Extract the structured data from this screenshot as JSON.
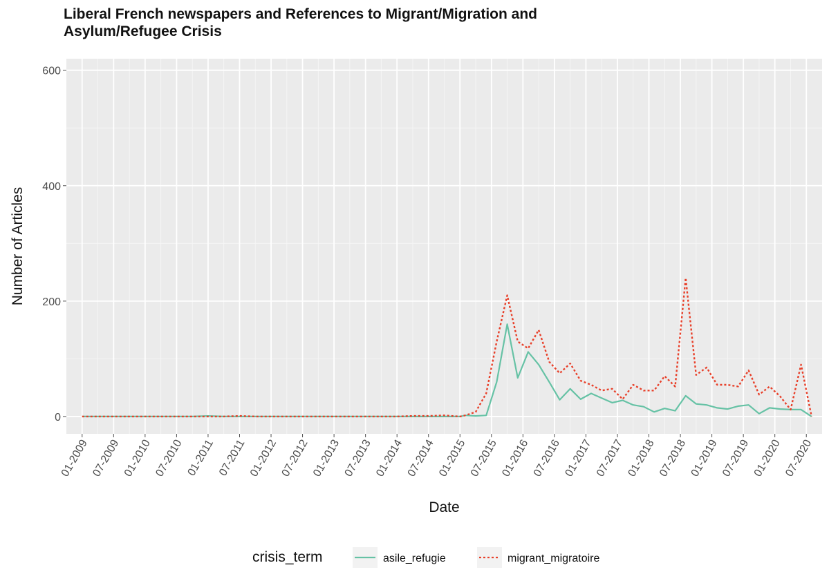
{
  "title_lines": [
    "Liberal French newspapers and References to Migrant/Migration and",
    "Asylum/Refugee Crisis"
  ],
  "chart_data": {
    "type": "line",
    "title": "Liberal French newspapers and References to Migrant/Migration and Asylum/Refugee Crisis",
    "xlabel": "Date",
    "ylabel": "Number of Articles",
    "x_tick_labels": [
      "01-2009",
      "07-2009",
      "01-2010",
      "07-2010",
      "01-2011",
      "07-2011",
      "01-2012",
      "07-2012",
      "01-2013",
      "07-2013",
      "01-2014",
      "07-2014",
      "01-2015",
      "07-2015",
      "01-2016",
      "07-2016",
      "01-2017",
      "07-2017",
      "01-2018",
      "07-2018",
      "01-2019",
      "07-2019",
      "01-2020",
      "07-2020"
    ],
    "y_ticks": [
      0,
      200,
      400,
      600
    ],
    "ylim": [
      -30,
      620
    ],
    "xlim": [
      "2008-10",
      "2020-10"
    ],
    "grid": true,
    "legend": {
      "title": "crisis_term",
      "placement": "bottom"
    },
    "series": [
      {
        "name": "asile_refugie",
        "color": "#66c2a5",
        "dash": "solid",
        "points": [
          [
            "2009-01",
            0
          ],
          [
            "2009-04",
            0
          ],
          [
            "2009-07",
            0
          ],
          [
            "2009-10",
            0
          ],
          [
            "2010-01",
            0
          ],
          [
            "2010-04",
            0
          ],
          [
            "2010-07",
            0
          ],
          [
            "2010-10",
            0
          ],
          [
            "2011-01",
            1
          ],
          [
            "2011-04",
            0
          ],
          [
            "2011-07",
            0
          ],
          [
            "2011-10",
            0
          ],
          [
            "2012-01",
            0
          ],
          [
            "2012-04",
            0
          ],
          [
            "2012-07",
            0
          ],
          [
            "2012-10",
            0
          ],
          [
            "2013-01",
            0
          ],
          [
            "2013-04",
            0
          ],
          [
            "2013-07",
            0
          ],
          [
            "2013-10",
            0
          ],
          [
            "2014-01",
            0
          ],
          [
            "2014-04",
            0
          ],
          [
            "2014-07",
            0
          ],
          [
            "2014-10",
            0
          ],
          [
            "2015-01",
            0
          ],
          [
            "2015-02",
            2
          ],
          [
            "2015-04",
            1
          ],
          [
            "2015-06",
            2
          ],
          [
            "2015-08",
            60
          ],
          [
            "2015-10",
            160
          ],
          [
            "2015-12",
            67
          ],
          [
            "2016-02",
            112
          ],
          [
            "2016-04",
            90
          ],
          [
            "2016-06",
            60
          ],
          [
            "2016-08",
            29
          ],
          [
            "2016-10",
            48
          ],
          [
            "2016-12",
            30
          ],
          [
            "2017-02",
            40
          ],
          [
            "2017-04",
            32
          ],
          [
            "2017-06",
            24
          ],
          [
            "2017-08",
            28
          ],
          [
            "2017-10",
            20
          ],
          [
            "2017-12",
            17
          ],
          [
            "2018-02",
            8
          ],
          [
            "2018-04",
            14
          ],
          [
            "2018-06",
            10
          ],
          [
            "2018-08",
            36
          ],
          [
            "2018-10",
            22
          ],
          [
            "2018-12",
            20
          ],
          [
            "2019-02",
            15
          ],
          [
            "2019-04",
            13
          ],
          [
            "2019-06",
            18
          ],
          [
            "2019-08",
            20
          ],
          [
            "2019-10",
            5
          ],
          [
            "2019-12",
            15
          ],
          [
            "2020-02",
            13
          ],
          [
            "2020-04",
            12
          ],
          [
            "2020-06",
            12
          ],
          [
            "2020-08",
            0
          ]
        ]
      },
      {
        "name": "migrant_migratoire",
        "color": "#e8402a",
        "dash": "dotted",
        "points": [
          [
            "2009-01",
            0
          ],
          [
            "2009-04",
            0
          ],
          [
            "2009-07",
            0
          ],
          [
            "2009-10",
            0
          ],
          [
            "2010-01",
            0
          ],
          [
            "2010-04",
            0
          ],
          [
            "2010-07",
            0
          ],
          [
            "2010-10",
            0
          ],
          [
            "2011-01",
            0
          ],
          [
            "2011-04",
            0
          ],
          [
            "2011-07",
            1
          ],
          [
            "2011-10",
            0
          ],
          [
            "2012-01",
            0
          ],
          [
            "2012-04",
            0
          ],
          [
            "2012-07",
            0
          ],
          [
            "2012-10",
            0
          ],
          [
            "2013-01",
            0
          ],
          [
            "2013-04",
            0
          ],
          [
            "2013-07",
            0
          ],
          [
            "2013-10",
            0
          ],
          [
            "2014-01",
            0
          ],
          [
            "2014-04",
            1
          ],
          [
            "2014-07",
            1
          ],
          [
            "2014-10",
            2
          ],
          [
            "2015-01",
            0
          ],
          [
            "2015-02",
            2
          ],
          [
            "2015-04",
            8
          ],
          [
            "2015-06",
            40
          ],
          [
            "2015-08",
            130
          ],
          [
            "2015-10",
            210
          ],
          [
            "2015-12",
            130
          ],
          [
            "2016-02",
            118
          ],
          [
            "2016-04",
            150
          ],
          [
            "2016-06",
            95
          ],
          [
            "2016-08",
            75
          ],
          [
            "2016-10",
            92
          ],
          [
            "2016-12",
            62
          ],
          [
            "2017-02",
            55
          ],
          [
            "2017-04",
            45
          ],
          [
            "2017-06",
            48
          ],
          [
            "2017-08",
            30
          ],
          [
            "2017-10",
            55
          ],
          [
            "2017-12",
            45
          ],
          [
            "2018-02",
            45
          ],
          [
            "2018-04",
            70
          ],
          [
            "2018-06",
            52
          ],
          [
            "2018-08",
            240
          ],
          [
            "2018-10",
            72
          ],
          [
            "2018-12",
            85
          ],
          [
            "2019-02",
            55
          ],
          [
            "2019-04",
            55
          ],
          [
            "2019-06",
            52
          ],
          [
            "2019-08",
            80
          ],
          [
            "2019-10",
            38
          ],
          [
            "2019-12",
            52
          ],
          [
            "2020-02",
            35
          ],
          [
            "2020-04",
            12
          ],
          [
            "2020-06",
            90
          ],
          [
            "2020-08",
            0
          ]
        ]
      }
    ]
  }
}
